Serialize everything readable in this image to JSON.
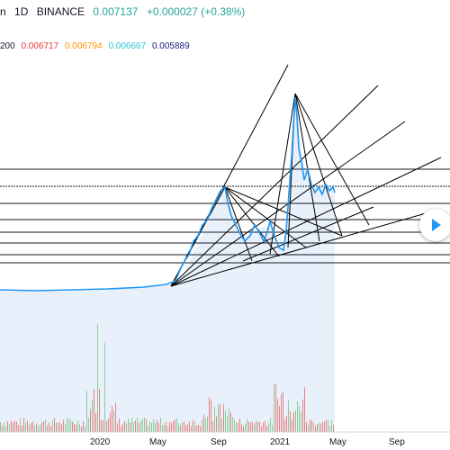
{
  "header": {
    "symbol": "n",
    "interval": "1D",
    "exchange": "BINANCE",
    "price": "0.007137",
    "change": "+0.000027 (+0.38%)",
    "change_color": "#26a69a"
  },
  "indicator": {
    "label": "200",
    "values": [
      {
        "text": "0.006717",
        "color": "#e53935"
      },
      {
        "text": "0.006794",
        "color": "#ff9800"
      },
      {
        "text": "0.006667",
        "color": "#26c6da"
      },
      {
        "text": "0.005889",
        "color": "#1a237e"
      }
    ]
  },
  "x_axis": {
    "labels": [
      "2020",
      "May",
      "Sep",
      "2021",
      "May",
      "Sep"
    ]
  },
  "colors": {
    "price_line": "#2196f3",
    "area_fill": "#e3eef9",
    "volume_up": "#66bb6a",
    "volume_down": "#ef5350",
    "drawing": "#000000"
  },
  "play_icon": "play-icon"
}
